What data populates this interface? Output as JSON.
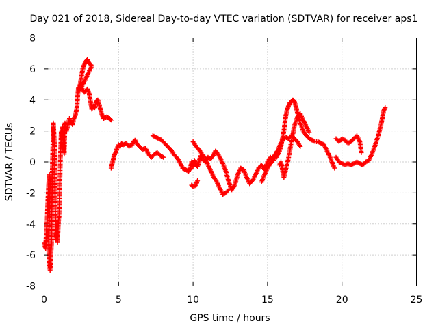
{
  "chart_data": {
    "type": "scatter",
    "title": "Day 021 of 2018, Sidereal Day-to-day VTEC variation (SDTVAR) for receiver aps1",
    "xlabel": "GPS time / hours",
    "ylabel": "SDTVAR / TECUs",
    "xlim": [
      0,
      25
    ],
    "ylim": [
      -8,
      8
    ],
    "xticks": [
      0,
      5,
      10,
      15,
      20,
      25
    ],
    "yticks": [
      -8,
      -6,
      -4,
      -2,
      0,
      2,
      4,
      6,
      8
    ],
    "marker": "plus",
    "color": "#ff0000",
    "grid": true,
    "series": [
      {
        "name": "SDTVAR",
        "segments": [
          [
            [
              0.0,
              -5.2
            ],
            [
              0.1,
              -5.6
            ],
            [
              0.15,
              -4.5
            ],
            [
              0.2,
              -3.8
            ],
            [
              0.25,
              -2.5
            ],
            [
              0.3,
              -1.5
            ],
            [
              0.35,
              -0.8
            ],
            [
              0.4,
              -1.2
            ],
            [
              0.3,
              -5.5
            ],
            [
              0.35,
              -6.5
            ],
            [
              0.4,
              -7.0
            ],
            [
              0.45,
              -6.0
            ],
            [
              0.5,
              -5.2
            ],
            [
              0.55,
              -0.5
            ],
            [
              0.6,
              1.5
            ],
            [
              0.62,
              2.5
            ],
            [
              0.65,
              2.0
            ],
            [
              0.7,
              1.0
            ],
            [
              0.75,
              -3.0
            ],
            [
              0.8,
              -5.0
            ],
            [
              0.85,
              -4.5
            ],
            [
              0.9,
              -5.2
            ],
            [
              0.95,
              -4.0
            ],
            [
              1.0,
              -3.5
            ],
            [
              1.05,
              -1.5
            ],
            [
              1.1,
              0.5
            ],
            [
              1.15,
              2.0
            ],
            [
              1.2,
              1.5
            ],
            [
              1.25,
              2.3
            ],
            [
              1.3,
              1.0
            ],
            [
              1.35,
              0.5
            ],
            [
              1.4,
              2.5
            ],
            [
              1.5,
              2.0
            ],
            [
              1.6,
              2.4
            ],
            [
              1.7,
              2.8
            ],
            [
              1.8,
              2.6
            ],
            [
              1.9,
              2.4
            ],
            [
              2.0,
              2.8
            ],
            [
              2.1,
              3.0
            ],
            [
              2.2,
              3.5
            ],
            [
              2.25,
              4.2
            ],
            [
              2.3,
              4.8
            ],
            [
              2.35,
              4.6
            ],
            [
              2.4,
              4.9
            ],
            [
              2.5,
              5.5
            ],
            [
              2.6,
              6.0
            ],
            [
              2.7,
              6.3
            ],
            [
              2.8,
              6.5
            ],
            [
              2.9,
              6.6
            ],
            [
              3.0,
              6.4
            ],
            [
              3.1,
              6.3
            ],
            [
              3.2,
              6.2
            ],
            [
              2.5,
              4.8
            ],
            [
              2.7,
              4.5
            ],
            [
              2.9,
              4.7
            ],
            [
              3.0,
              4.5
            ],
            [
              3.1,
              4.0
            ],
            [
              3.2,
              3.4
            ],
            [
              3.3,
              3.6
            ],
            [
              3.4,
              3.5
            ],
            [
              3.5,
              3.9
            ],
            [
              3.6,
              4.0
            ],
            [
              3.7,
              3.7
            ],
            [
              3.8,
              3.3
            ],
            [
              3.9,
              3.0
            ],
            [
              4.0,
              2.8
            ],
            [
              4.2,
              2.9
            ],
            [
              4.4,
              2.8
            ],
            [
              4.5,
              2.7
            ]
          ],
          [
            [
              4.5,
              -0.4
            ],
            [
              4.6,
              0.0
            ],
            [
              4.7,
              0.4
            ],
            [
              4.8,
              0.6
            ],
            [
              4.9,
              0.9
            ],
            [
              5.0,
              1.1
            ],
            [
              5.1,
              1.0
            ],
            [
              5.2,
              1.2
            ],
            [
              5.3,
              1.1
            ],
            [
              5.5,
              1.2
            ],
            [
              5.7,
              1.0
            ],
            [
              5.9,
              1.1
            ],
            [
              6.0,
              1.3
            ],
            [
              6.1,
              1.4
            ],
            [
              6.2,
              1.2
            ],
            [
              6.4,
              1.0
            ],
            [
              6.6,
              0.8
            ],
            [
              6.8,
              0.9
            ],
            [
              7.0,
              0.5
            ],
            [
              7.2,
              0.3
            ],
            [
              7.4,
              0.5
            ],
            [
              7.6,
              0.6
            ],
            [
              7.8,
              0.4
            ],
            [
              8.0,
              0.3
            ]
          ],
          [
            [
              7.3,
              1.7
            ],
            [
              7.5,
              1.6
            ],
            [
              7.7,
              1.5
            ],
            [
              7.9,
              1.4
            ],
            [
              8.1,
              1.2
            ],
            [
              8.3,
              1.0
            ],
            [
              8.5,
              0.8
            ],
            [
              8.7,
              0.5
            ],
            [
              8.9,
              0.3
            ],
            [
              9.1,
              0.0
            ],
            [
              9.3,
              -0.4
            ],
            [
              9.5,
              -0.5
            ],
            [
              9.7,
              -0.6
            ],
            [
              9.8,
              -0.4
            ]
          ],
          [
            [
              9.8,
              -0.5
            ],
            [
              9.9,
              0.0
            ],
            [
              10.0,
              -0.3
            ],
            [
              10.1,
              0.1
            ],
            [
              10.2,
              -0.2
            ],
            [
              10.3,
              -0.3
            ],
            [
              10.4,
              0.0
            ],
            [
              10.5,
              0.4
            ],
            [
              10.6,
              0.2
            ],
            [
              10.8,
              0.0
            ],
            [
              11.0,
              0.3
            ],
            [
              11.2,
              0.2
            ],
            [
              11.4,
              0.5
            ],
            [
              11.5,
              0.7
            ],
            [
              11.6,
              0.6
            ],
            [
              11.8,
              0.3
            ],
            [
              12.0,
              -0.1
            ],
            [
              12.2,
              -0.6
            ],
            [
              12.4,
              -1.3
            ],
            [
              12.6,
              -1.8
            ],
            [
              12.8,
              -1.5
            ],
            [
              13.0,
              -0.8
            ],
            [
              13.2,
              -0.4
            ],
            [
              13.4,
              -0.5
            ],
            [
              13.6,
              -1.0
            ],
            [
              13.8,
              -1.4
            ]
          ],
          [
            [
              10.0,
              1.3
            ],
            [
              10.2,
              1.0
            ],
            [
              10.4,
              0.8
            ],
            [
              10.6,
              0.5
            ],
            [
              10.8,
              0.3
            ],
            [
              11.0,
              -0.2
            ],
            [
              11.2,
              -0.6
            ],
            [
              11.4,
              -1.0
            ],
            [
              11.6,
              -1.3
            ],
            [
              11.8,
              -1.7
            ],
            [
              12.0,
              -2.1
            ],
            [
              12.2,
              -2.0
            ],
            [
              12.4,
              -1.8
            ]
          ],
          [
            [
              9.9,
              -1.5
            ],
            [
              10.0,
              -1.6
            ],
            [
              10.2,
              -1.5
            ],
            [
              10.3,
              -1.2
            ]
          ],
          [
            [
              13.8,
              -1.4
            ],
            [
              14.0,
              -1.2
            ],
            [
              14.2,
              -0.8
            ],
            [
              14.4,
              -0.4
            ],
            [
              14.6,
              -0.2
            ],
            [
              14.8,
              -0.5
            ],
            [
              15.0,
              0.0
            ],
            [
              15.2,
              0.3
            ],
            [
              15.4,
              0.1
            ],
            [
              15.5,
              0.5
            ],
            [
              15.6,
              0.3
            ],
            [
              15.8,
              0.7
            ],
            [
              15.9,
              1.0
            ],
            [
              16.0,
              1.5
            ],
            [
              16.1,
              2.0
            ],
            [
              16.2,
              2.8
            ],
            [
              16.3,
              3.3
            ],
            [
              16.4,
              3.6
            ],
            [
              16.5,
              3.8
            ],
            [
              16.6,
              3.9
            ],
            [
              16.7,
              4.0
            ],
            [
              16.8,
              3.9
            ],
            [
              16.9,
              3.6
            ],
            [
              17.0,
              3.2
            ],
            [
              17.2,
              2.5
            ],
            [
              17.4,
              2.0
            ],
            [
              17.6,
              1.7
            ],
            [
              17.8,
              1.5
            ],
            [
              18.0,
              1.4
            ],
            [
              18.2,
              1.3
            ],
            [
              18.4,
              1.3
            ],
            [
              18.6,
              1.2
            ],
            [
              18.8,
              1.1
            ],
            [
              19.0,
              0.7
            ],
            [
              19.2,
              0.3
            ],
            [
              19.4,
              -0.2
            ],
            [
              19.5,
              -0.4
            ]
          ],
          [
            [
              14.6,
              -1.3
            ],
            [
              14.8,
              -0.8
            ],
            [
              15.0,
              -0.4
            ],
            [
              15.2,
              -0.1
            ],
            [
              15.4,
              0.2
            ],
            [
              15.6,
              0.6
            ],
            [
              15.8,
              1.0
            ],
            [
              16.0,
              1.4
            ],
            [
              16.2,
              1.6
            ],
            [
              16.4,
              1.5
            ],
            [
              16.6,
              1.7
            ],
            [
              16.8,
              1.5
            ],
            [
              17.0,
              1.3
            ],
            [
              17.2,
              1.0
            ]
          ],
          [
            [
              15.8,
              -0.2
            ],
            [
              15.9,
              0.0
            ],
            [
              16.0,
              -0.5
            ],
            [
              16.1,
              -1.0
            ],
            [
              16.2,
              -0.6
            ],
            [
              16.4,
              0.2
            ],
            [
              16.6,
              1.3
            ],
            [
              16.8,
              2.3
            ],
            [
              17.0,
              2.9
            ],
            [
              17.2,
              3.1
            ],
            [
              17.4,
              2.7
            ],
            [
              17.6,
              2.3
            ],
            [
              17.8,
              1.9
            ]
          ],
          [
            [
              19.6,
              1.5
            ],
            [
              19.8,
              1.3
            ],
            [
              20.0,
              1.5
            ],
            [
              20.2,
              1.4
            ],
            [
              20.4,
              1.2
            ],
            [
              20.6,
              1.3
            ],
            [
              20.8,
              1.5
            ],
            [
              21.0,
              1.7
            ],
            [
              21.2,
              1.3
            ],
            [
              21.3,
              0.6
            ]
          ],
          [
            [
              19.6,
              0.3
            ],
            [
              19.8,
              0.0
            ],
            [
              20.0,
              -0.1
            ],
            [
              20.2,
              -0.2
            ],
            [
              20.4,
              -0.1
            ],
            [
              20.6,
              -0.2
            ],
            [
              20.8,
              -0.1
            ],
            [
              21.0,
              0.0
            ],
            [
              21.2,
              -0.1
            ],
            [
              21.4,
              -0.2
            ],
            [
              21.6,
              0.0
            ],
            [
              21.8,
              0.1
            ],
            [
              22.0,
              0.5
            ],
            [
              22.2,
              1.0
            ],
            [
              22.4,
              1.6
            ],
            [
              22.6,
              2.3
            ],
            [
              22.7,
              2.8
            ],
            [
              22.8,
              3.3
            ],
            [
              22.9,
              3.5
            ]
          ]
        ]
      }
    ]
  }
}
